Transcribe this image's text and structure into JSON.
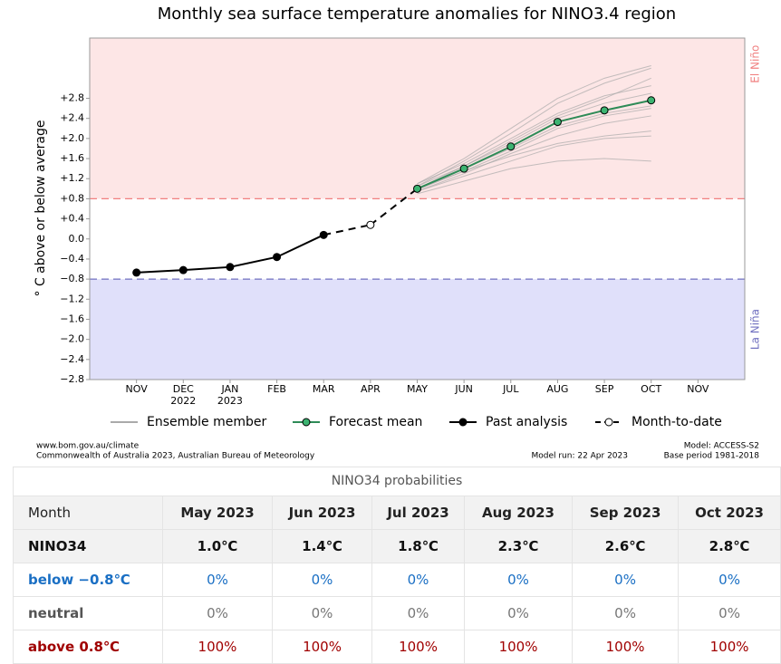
{
  "chart_data": {
    "type": "line",
    "title": "Monthly sea surface temperature anomalies for NINO3.4 region",
    "y_label": "° C above or below average",
    "categories": [
      "NOV",
      "DEC 2022",
      "JAN 2023",
      "FEB",
      "MAR",
      "APR",
      "MAY",
      "JUN",
      "JUL",
      "AUG",
      "SEP",
      "OCT",
      "NOV"
    ],
    "ylim": [
      -2.8,
      4.0
    ],
    "yticks": [
      {
        "value": -2.8,
        "label": "−2.8"
      },
      {
        "value": -2.4,
        "label": "−2.4"
      },
      {
        "value": -2.0,
        "label": "−2.0"
      },
      {
        "value": -1.6,
        "label": "−1.6"
      },
      {
        "value": -1.2,
        "label": "−1.2"
      },
      {
        "value": -0.8,
        "label": "−0.8"
      },
      {
        "value": -0.4,
        "label": "−0.4"
      },
      {
        "value": 0,
        "label": "0.0"
      },
      {
        "value": 0.4,
        "label": "+0.4"
      },
      {
        "value": 0.8,
        "label": "+0.8"
      },
      {
        "value": 1.2,
        "label": "+1.2"
      },
      {
        "value": 1.6,
        "label": "+1.6"
      },
      {
        "value": 2.0,
        "label": "+2.0"
      },
      {
        "value": 2.4,
        "label": "+2.4"
      },
      {
        "value": 2.8,
        "label": "+2.8"
      }
    ],
    "thresholds": [
      {
        "label": "El Niño",
        "value": 0.8,
        "color": "#f08080",
        "fill": "#fde6e6"
      },
      {
        "label": "La Niña",
        "value": -0.8,
        "color": "#7070c0",
        "fill": "#e0e0fa"
      }
    ],
    "series": [
      {
        "name": "Ensemble member",
        "color": "#aaaaaa",
        "members": [
          [
            null,
            null,
            null,
            null,
            null,
            null,
            1.05,
            1.55,
            2.1,
            2.7,
            3.1,
            3.4
          ],
          [
            null,
            null,
            null,
            null,
            null,
            null,
            1.1,
            1.6,
            2.2,
            2.8,
            3.2,
            3.45
          ],
          [
            null,
            null,
            null,
            null,
            null,
            null,
            0.95,
            1.3,
            1.7,
            2.05,
            2.3,
            2.45
          ],
          [
            null,
            null,
            null,
            null,
            null,
            null,
            1.0,
            1.35,
            1.65,
            1.9,
            2.05,
            2.15
          ],
          [
            null,
            null,
            null,
            null,
            null,
            null,
            0.9,
            1.15,
            1.4,
            1.55,
            1.6,
            1.55
          ],
          [
            null,
            null,
            null,
            null,
            null,
            null,
            1.05,
            1.45,
            1.9,
            2.4,
            2.7,
            2.9
          ],
          [
            null,
            null,
            null,
            null,
            null,
            null,
            1.0,
            1.4,
            1.8,
            2.25,
            2.5,
            2.65
          ],
          [
            null,
            null,
            null,
            null,
            null,
            null,
            1.1,
            1.5,
            2.0,
            2.5,
            2.85,
            3.05
          ],
          [
            null,
            null,
            null,
            null,
            null,
            null,
            0.95,
            1.25,
            1.55,
            1.85,
            2.0,
            2.05
          ],
          [
            null,
            null,
            null,
            null,
            null,
            null,
            1.0,
            1.45,
            1.95,
            2.45,
            2.8,
            3.2
          ],
          [
            null,
            null,
            null,
            null,
            null,
            null,
            0.98,
            1.35,
            1.75,
            2.2,
            2.45,
            2.6
          ]
        ]
      },
      {
        "name": "Forecast mean",
        "color": "#2e8b57",
        "marker_color": "#3cb371",
        "values": [
          null,
          null,
          null,
          null,
          null,
          null,
          1.0,
          1.4,
          1.84,
          2.33,
          2.56,
          2.76,
          null
        ]
      },
      {
        "name": "Past analysis",
        "color": "#000000",
        "marker_color": "#000000",
        "values": [
          -0.67,
          -0.62,
          -0.56,
          -0.36,
          0.08,
          null,
          null,
          null,
          null,
          null,
          null,
          null,
          null
        ]
      },
      {
        "name": "Month-to-date",
        "color": "#000000",
        "marker_color": "#ffffff",
        "dashed": true,
        "values": [
          null,
          null,
          null,
          null,
          null,
          0.28,
          null,
          null,
          null,
          null,
          null,
          null,
          null
        ]
      }
    ],
    "footer_left": [
      "www.bom.gov.au/climate",
      "Commonwealth of Australia 2023, Australian Bureau of Meteorology"
    ],
    "footer_mid": "Model run: 22 Apr 2023",
    "footer_right": [
      "Model: ACCESS-S2",
      "Base period 1981-2018"
    ]
  },
  "table": {
    "title": "NINO34 probabilities",
    "header": [
      "Month",
      "May 2023",
      "Jun 2023",
      "Jul 2023",
      "Aug 2023",
      "Sep 2023",
      "Oct 2023"
    ],
    "rows": [
      [
        "NINO34",
        "1.0℃",
        "1.4℃",
        "1.8℃",
        "2.3℃",
        "2.6℃",
        "2.8℃"
      ],
      [
        "below −0.8℃",
        "0%",
        "0%",
        "0%",
        "0%",
        "0%",
        "0%"
      ],
      [
        "neutral",
        "0%",
        "0%",
        "0%",
        "0%",
        "0%",
        "0%"
      ],
      [
        "above 0.8℃",
        "100%",
        "100%",
        "100%",
        "100%",
        "100%",
        "100%"
      ]
    ]
  }
}
